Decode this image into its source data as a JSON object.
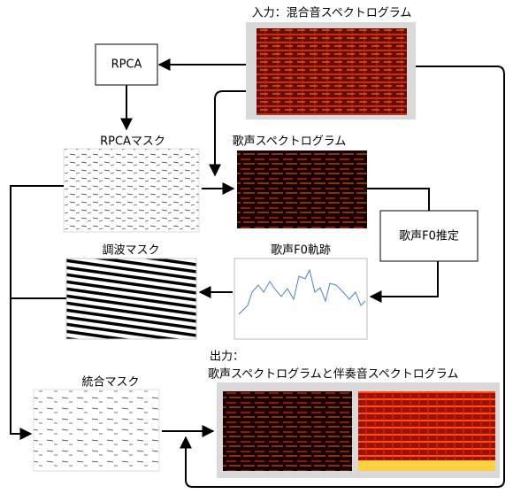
{
  "input": {
    "label": "入力：混合音スペクトログラム"
  },
  "rpca": {
    "label": "RPCA"
  },
  "rpca_mask": {
    "label": "RPCAマスク"
  },
  "vocal_spectrogram": {
    "label": "歌声スペクトログラム"
  },
  "f0_estimation": {
    "label": "歌声F0推定"
  },
  "harmonic_mask": {
    "label": "調波マスク"
  },
  "f0_trajectory": {
    "label": "歌声F0軌跡"
  },
  "integrated_mask": {
    "label": "統合マスク"
  },
  "output": {
    "label": "出力：",
    "caption": "歌声スペクトログラムと伴奏音スペクトログラム"
  }
}
